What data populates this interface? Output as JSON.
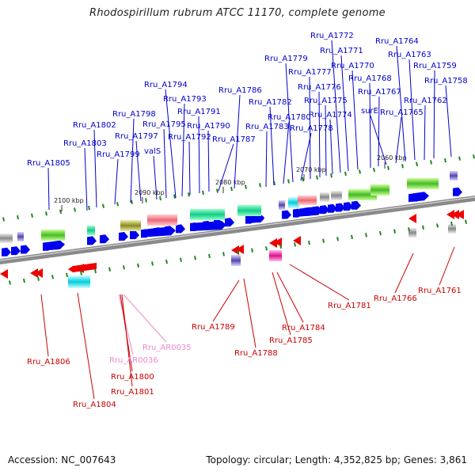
{
  "title": "Rhodospirillum rubrum ATCC 11170, complete genome",
  "footer": {
    "accession": "Accession: NC_007643",
    "summary": "Topology: circular; Length: 4,352,825 bp; Genes: 3,861"
  },
  "colors": {
    "top_label": "#0000cc",
    "bottom_label": "#cc0000",
    "rna_label": "#ee88cc",
    "forward_gene": "#0000ee",
    "reverse_gene": "#ee0000",
    "backbone": "#777777",
    "tick_mark": "#228822"
  },
  "ticks": [
    "2100 kbp",
    "2090 kbp",
    "2080 kbp",
    "2070 kbp",
    "2060 kbp"
  ],
  "top_labels": [
    "Rru_A1805",
    "Rru_A1803",
    "Rru_A1802",
    "Rru_A1799",
    "Rru_A1798",
    "Rru_A1797",
    "valS",
    "Rru_A1795",
    "Rru_A1794",
    "Rru_A1793",
    "Rru_A1792",
    "Rru_A1791",
    "Rru_A1790",
    "Rru_A1787",
    "Rru_A1786",
    "Rru_A1783",
    "Rru_A1782",
    "Rru_A1780",
    "Rru_A1779",
    "Rru_A1778",
    "Rru_A1777",
    "Rru_A1776",
    "Rru_A1775",
    "Rru_A1774",
    "Rru_A1772",
    "Rru_A1771",
    "Rru_A1770",
    "Rru_A1768",
    "Rru_A1767",
    "surE",
    "Rru_A1765",
    "Rru_A1764",
    "Rru_A1763",
    "Rru_A1762",
    "Rru_A1759",
    "Rru_A1758"
  ],
  "bottom_labels": [
    "Rru_A1806",
    "Rru_A1804",
    "Rru_AR0036",
    "Rru_A1800",
    "Rru_A1801",
    "Rru_AR0035",
    "Rru_A1789",
    "Rru_A1788",
    "Rru_A1785",
    "Rru_A1784",
    "Rru_A1781",
    "Rru_A1766",
    "Rru_A1761"
  ]
}
